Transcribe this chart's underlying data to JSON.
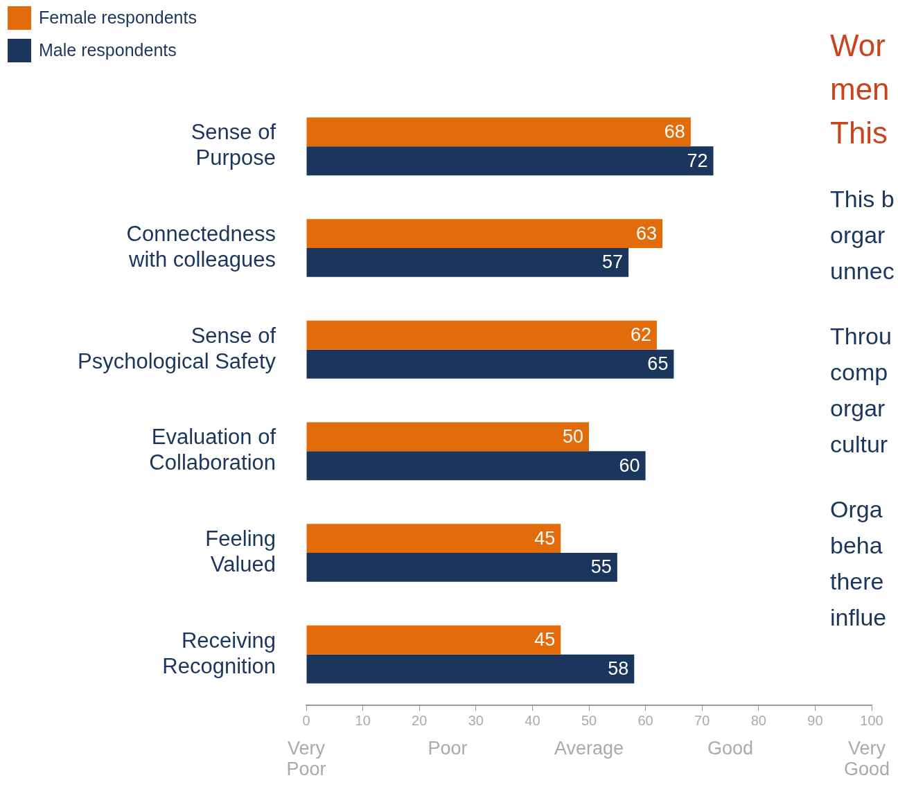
{
  "chart_data": {
    "type": "bar",
    "orientation": "horizontal",
    "categories": [
      "Sense of\nPurpose",
      "Connectedness\nwith colleagues",
      "Sense of\nPsychological Safety",
      "Evaluation of\nCollaboration",
      "Feeling\nValued",
      "Receiving\nRecognition"
    ],
    "series": [
      {
        "name": "Female respondents",
        "color": "#e36c0a",
        "values": [
          68,
          63,
          62,
          50,
          45,
          45
        ]
      },
      {
        "name": "Male respondents",
        "color": "#1b365d",
        "values": [
          72,
          57,
          65,
          60,
          55,
          58
        ]
      }
    ],
    "xlim": [
      0,
      100
    ],
    "xticks": [
      0,
      10,
      20,
      30,
      40,
      50,
      60,
      70,
      80,
      90,
      100
    ],
    "data_labels": true,
    "grid": false,
    "legend": "top left",
    "title": "Wor\nmen\nThis",
    "subtitle": "This b\norgar\nunnec\n\nThrou\ncomp\norgar\ncultur\n\nOrga\nbeha\nthere\ninflue",
    "annotations": [
      "Very\nPoor",
      "Poor",
      "Average",
      "Good",
      "Very\nGood"
    ]
  }
}
